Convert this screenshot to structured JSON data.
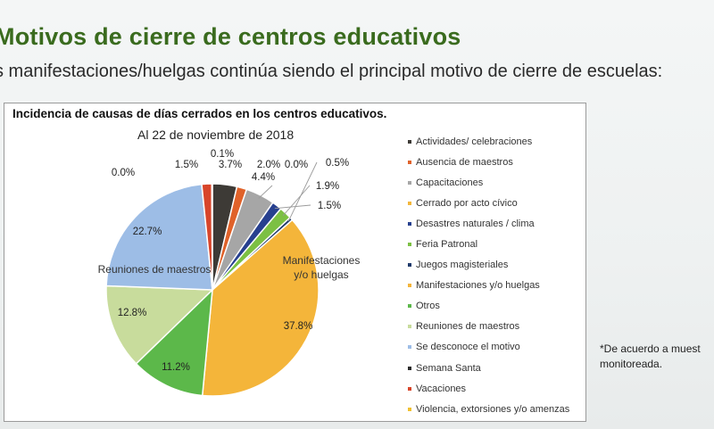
{
  "slide": {
    "title": "Motivos de cierre de centros educativos",
    "subtitle": "s manifestaciones/huelgas continúa siendo el principal motivo de cierre de escuelas:",
    "footnote_line1": "*De acuerdo a muest",
    "footnote_line2": "monitoreada."
  },
  "chart_data": {
    "type": "pie",
    "title": "Incidencia de causas de días cerrados en los centros educativos.",
    "subtitle": "Al 22 de noviembre de 2018",
    "unit": "%",
    "legend_position": "right",
    "start": "top, clockwise",
    "slices": [
      {
        "label": "Actividades/ celebraciones",
        "value": 3.7,
        "value_label": "3.7%",
        "color": "#3d3a36"
      },
      {
        "label": "Ausencia de maestros",
        "value": 1.5,
        "value_label": "1.5%",
        "color": "#e0622a"
      },
      {
        "label": "Capacitaciones",
        "value": 4.4,
        "value_label": "4.4%",
        "color": "#a6a6a6"
      },
      {
        "label": "Cerrado por acto cívico",
        "value": 0.0,
        "value_label": "0.0%",
        "color": "#f3b63a"
      },
      {
        "label": "Desastres naturales / clima",
        "value": 1.5,
        "value_label": "1.5%",
        "color": "#27408f"
      },
      {
        "label": "Feria Patronal",
        "value": 1.9,
        "value_label": "1.9%",
        "color": "#7cc043"
      },
      {
        "label": "Juegos magisteriales",
        "value": 0.5,
        "value_label": "0.5%",
        "color": "#1f3a6b"
      },
      {
        "label": "Manifestaciones y/o huelgas",
        "value": 37.8,
        "value_label": "37.8%",
        "color": "#f4b53a",
        "category_label": "Manifestaciones y/o huelgas"
      },
      {
        "label": "Otros",
        "value": 11.2,
        "value_label": "11.2%",
        "color": "#5cb84a"
      },
      {
        "label": "Reuniones de maestros",
        "value": 12.8,
        "value_label": "12.8%",
        "color": "#c8dc9c",
        "category_label": "Reuniones de maestros"
      },
      {
        "label": "Se desconoce el motivo",
        "value": 22.7,
        "value_label": "22.7%",
        "color": "#9dbde6"
      },
      {
        "label": "Semana Santa",
        "value": 0.0,
        "value_label": "0.0%",
        "color": "#2b2b2b"
      },
      {
        "label": "Vacaciones",
        "value": 1.5,
        "value_label": "1.5%",
        "color": "#d8452a"
      },
      {
        "label": "Violencia, extorsiones y/o amenzas",
        "value": 0.1,
        "value_label": "0.1%",
        "color": "#f0c030"
      }
    ],
    "extra_value_labels": [
      "2.0%",
      "0.0%"
    ]
  }
}
